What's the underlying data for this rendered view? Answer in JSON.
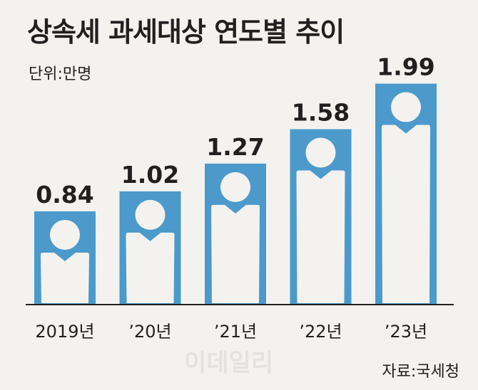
{
  "title": "상속세 과세대상 연도별 추이",
  "unit": "단위:만명",
  "source": "자료:국세청",
  "watermark": "이데일리",
  "colors": {
    "bar": "#4b9acb",
    "figure": "#f3f2ee",
    "text": "#231f20",
    "axis": "#231f20"
  },
  "chart_data": {
    "type": "bar",
    "categories": [
      "2019년",
      "’20년",
      "’21년",
      "’22년",
      "’23년"
    ],
    "values": [
      0.84,
      1.02,
      1.27,
      1.58,
      1.99
    ],
    "value_labels": [
      "0.84",
      "1.02",
      "1.27",
      "1.58",
      "1.99"
    ],
    "title": "상속세 과세대상 연도별 추이",
    "ylabel": "",
    "ylim": [
      0,
      2.0
    ],
    "grid": false,
    "legend": "none"
  }
}
